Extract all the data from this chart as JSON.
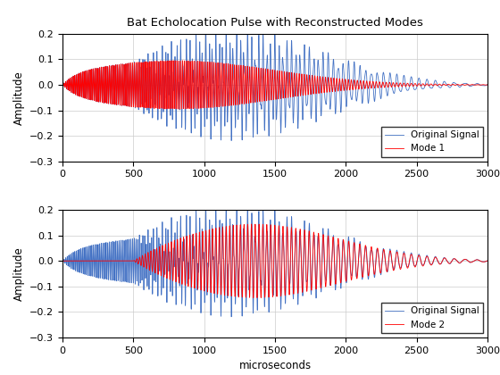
{
  "title": "Bat Echolocation Pulse with Reconstructed Modes",
  "xlabel": "microseconds",
  "ylabel": "Amplitude",
  "xlim": [
    0,
    3000
  ],
  "ylim": [
    -0.3,
    0.2
  ],
  "yticks": [
    -0.3,
    -0.2,
    -0.1,
    0.0,
    0.1,
    0.2
  ],
  "xticks": [
    0,
    500,
    1000,
    1500,
    2000,
    2500,
    3000
  ],
  "original_color": "#4472C4",
  "mode1_color": "#FF0000",
  "mode2_color": "#FF0000",
  "legend1": [
    "Original Signal",
    "Mode 1"
  ],
  "legend2": [
    "Original Signal",
    "Mode 2"
  ],
  "n_samples": 3000
}
